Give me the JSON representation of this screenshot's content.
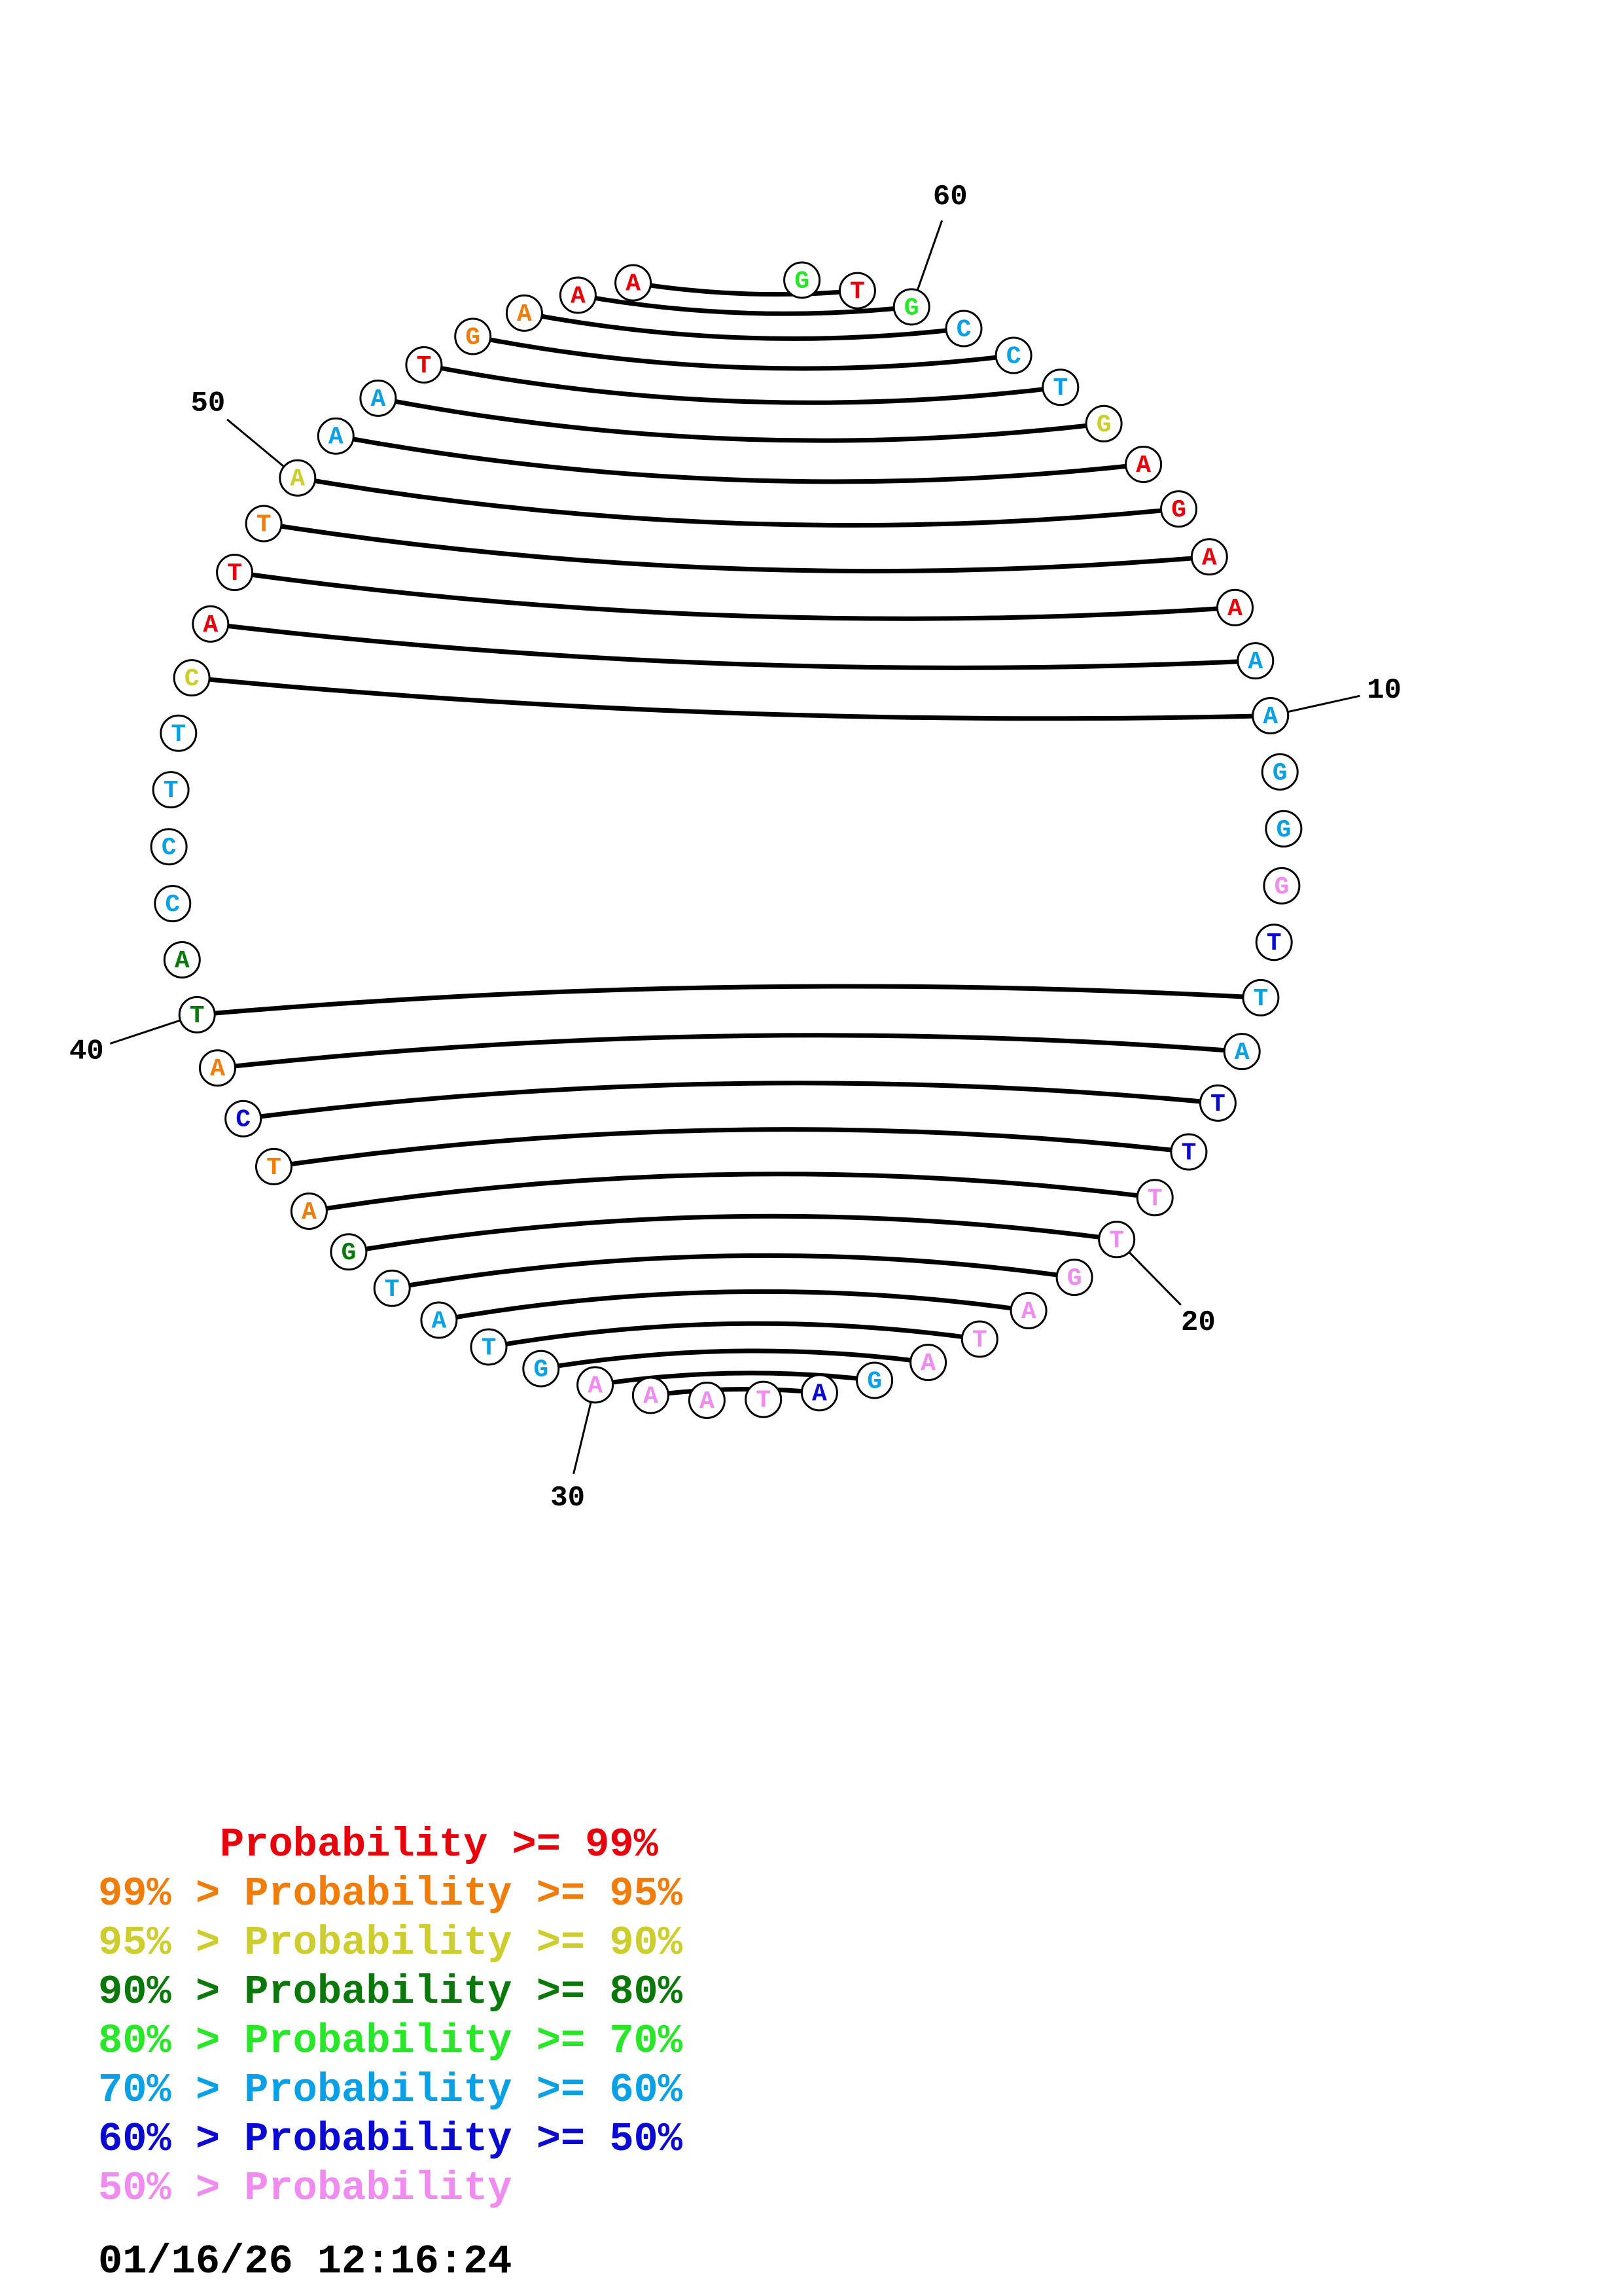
{
  "sequence": [
    "G",
    "T",
    "G",
    "C",
    "C",
    "T",
    "G",
    "A",
    "G",
    "A",
    "A",
    "A",
    "A",
    "G",
    "G",
    "G",
    "T",
    "T",
    "A",
    "T",
    "T",
    "T",
    "T",
    "G",
    "A",
    "T",
    "A",
    "G",
    "A",
    "T",
    "A",
    "A",
    "A",
    "G",
    "T",
    "A",
    "T",
    "G",
    "A",
    "T",
    "C",
    "A",
    "T",
    "A",
    "C",
    "C",
    "T",
    "T",
    "C",
    "A",
    "T",
    "T",
    "A",
    "A",
    "A",
    "T",
    "G",
    "A",
    "A",
    "A"
  ],
  "probability_classes": [
    4,
    0,
    4,
    5,
    5,
    5,
    2,
    0,
    0,
    0,
    0,
    5,
    5,
    5,
    5,
    7,
    6,
    5,
    5,
    6,
    6,
    7,
    7,
    7,
    7,
    7,
    7,
    5,
    6,
    7,
    7,
    7,
    7,
    5,
    5,
    5,
    5,
    3,
    1,
    1,
    6,
    1,
    3,
    3,
    5,
    5,
    5,
    5,
    2,
    0,
    0,
    1,
    2,
    5,
    5,
    0,
    1,
    1,
    0,
    0
  ],
  "pairs": [
    {
      "i": 1,
      "j": 59
    },
    {
      "i": 2,
      "j": 58
    },
    {
      "i": 3,
      "j": 57
    },
    {
      "i": 4,
      "j": 56
    },
    {
      "i": 5,
      "j": 55
    },
    {
      "i": 6,
      "j": 54
    },
    {
      "i": 7,
      "j": 53
    },
    {
      "i": 8,
      "j": 52
    },
    {
      "i": 9,
      "j": 51
    },
    {
      "i": 10,
      "j": 50
    },
    {
      "i": 11,
      "j": 49
    },
    {
      "i": 12,
      "j": 48
    },
    {
      "i": 17,
      "j": 42
    },
    {
      "i": 18,
      "j": 41
    },
    {
      "i": 19,
      "j": 40
    },
    {
      "i": 20,
      "j": 39
    },
    {
      "i": 21,
      "j": 38
    },
    {
      "i": 22,
      "j": 37
    },
    {
      "i": 23,
      "j": 36
    },
    {
      "i": 24,
      "j": 35
    },
    {
      "i": 25,
      "j": 34
    },
    {
      "i": 26,
      "j": 33
    },
    {
      "i": 27,
      "j": 32
    },
    {
      "i": 28,
      "j": 31
    }
  ],
  "tick_labels": [
    {
      "index": 12,
      "label": "10"
    },
    {
      "index": 22,
      "label": "20"
    },
    {
      "index": 32,
      "label": "30"
    },
    {
      "index": 42,
      "label": "40"
    },
    {
      "index": 52,
      "label": "50"
    },
    {
      "index": 2,
      "label": "60"
    }
  ],
  "legend": [
    {
      "text": "     Probability >= 99%",
      "color": "#e8000b"
    },
    {
      "text": "99% > Probability >= 95%",
      "color": "#f07d0a"
    },
    {
      "text": "95% > Probability >= 90%",
      "color": "#cdcd2d"
    },
    {
      "text": "90% > Probability >= 80%",
      "color": "#0a780a"
    },
    {
      "text": "80% > Probability >= 70%",
      "color": "#28e628"
    },
    {
      "text": "70% > Probability >= 60%",
      "color": "#0aa0e6"
    },
    {
      "text": "60% > Probability >= 50%",
      "color": "#0a0ad2"
    },
    {
      "text": "50% > Probability",
      "color": "#f08cf0"
    }
  ],
  "timestamp": "01/16/26 12:16:24"
}
